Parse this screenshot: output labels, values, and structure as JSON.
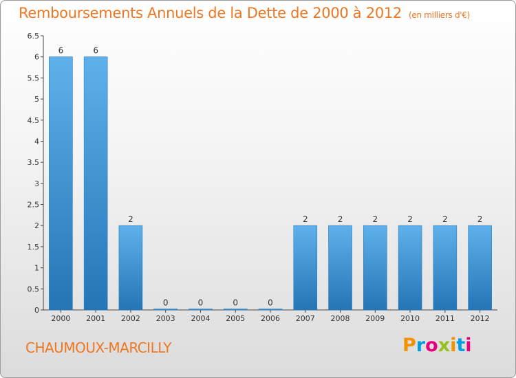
{
  "title": "Remboursements Annuels de la Dette de 2000 à 2012",
  "unit": "(en milliers d'€)",
  "commune": "CHAUMOUX-MARCILLY",
  "logo": {
    "letters": [
      "P",
      "r",
      "o",
      "x",
      "i",
      "t",
      "i"
    ],
    "colors": [
      "#f39200",
      "#009ee0",
      "#e6007e",
      "#95c11f",
      "#f39200",
      "#009ee0",
      "#e6007e"
    ]
  },
  "chart_data": {
    "type": "bar",
    "categories": [
      "2000",
      "2001",
      "2002",
      "2003",
      "2004",
      "2005",
      "2006",
      "2007",
      "2008",
      "2009",
      "2010",
      "2011",
      "2012"
    ],
    "values": [
      6,
      6,
      2,
      0,
      0,
      0,
      0,
      2,
      2,
      2,
      2,
      2,
      2
    ],
    "data_labels": [
      "6",
      "6",
      "2",
      "0",
      "0",
      "0",
      "0",
      "2",
      "2",
      "2",
      "2",
      "2",
      "2"
    ],
    "yticks": [
      "0",
      "0.5",
      "1",
      "1.5",
      "2",
      "2.5",
      "3",
      "3.5",
      "4",
      "4.5",
      "5",
      "5.5",
      "6",
      "6.5"
    ],
    "ylim": [
      0,
      6.5
    ],
    "grid": false,
    "bar_color": "#3f97d6"
  }
}
